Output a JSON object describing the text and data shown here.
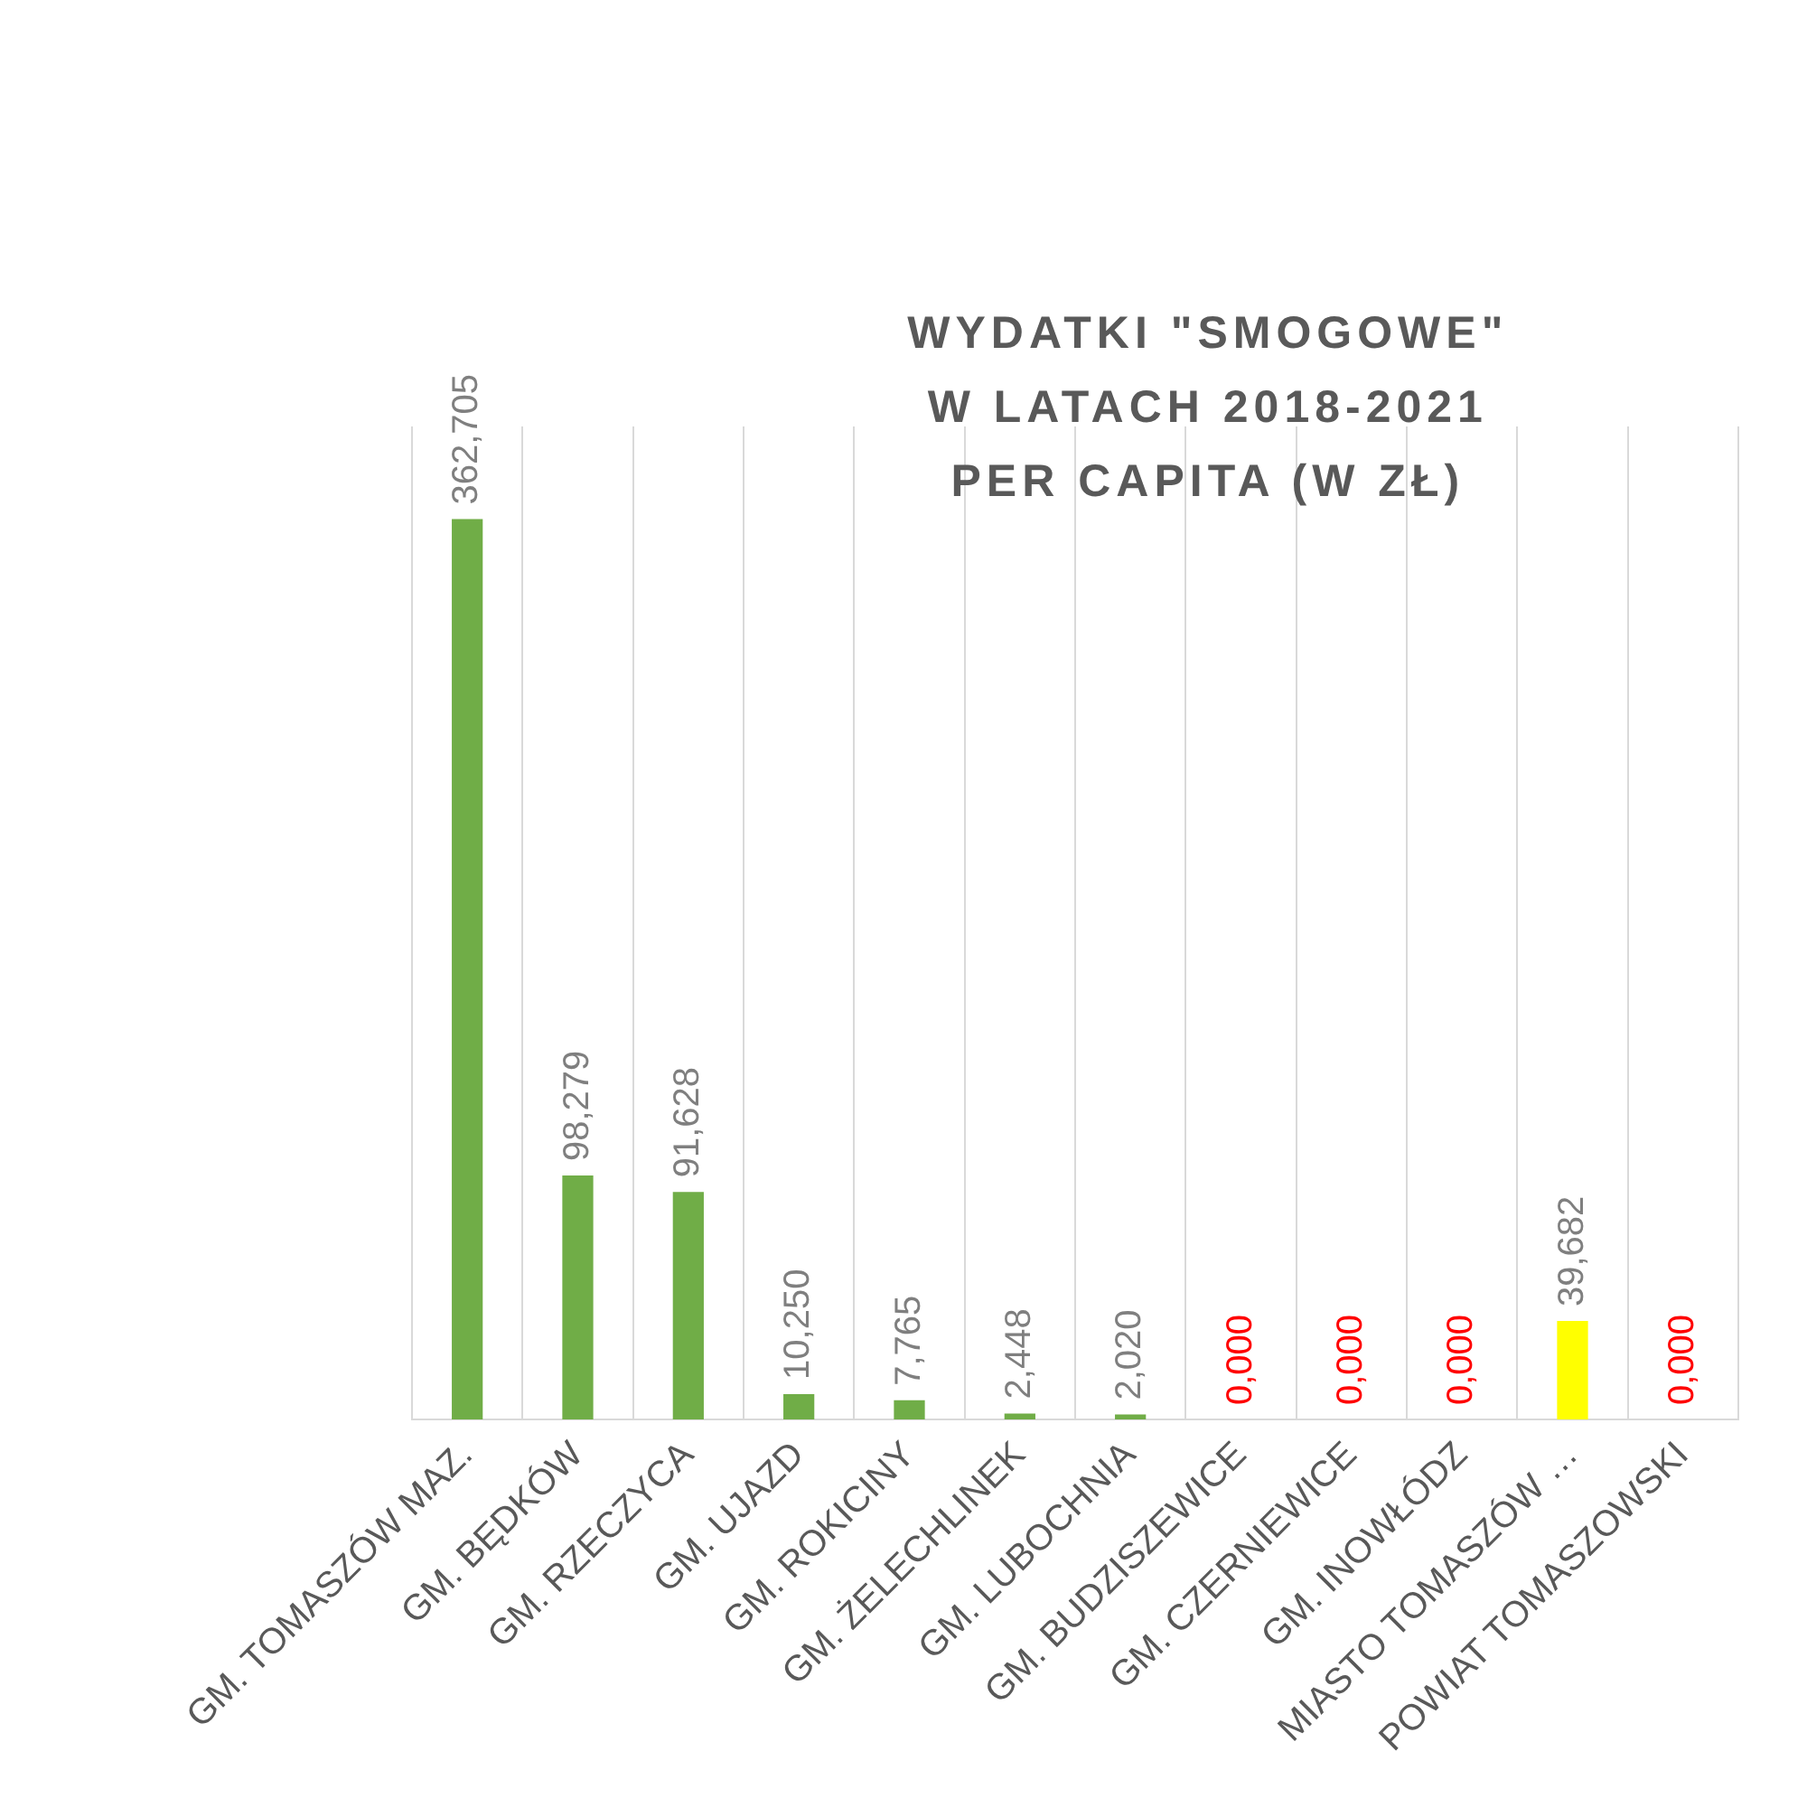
{
  "chart_data": {
    "type": "bar",
    "title": "WYDATKI \"SMOGOWE\"\nW LATACH 2018-2021\nPER CAPITA (W ZŁ)",
    "categories": [
      "GM. TOMASZÓW MAZ.",
      "GM. BĘDKÓW",
      "GM. RZECZYCA",
      "GM. UJAZD",
      "GM. ROKICINY",
      "GM. ŻELECHLINEK",
      "GM. LUBOCHNIA",
      "GM. BUDZISZEWICE",
      "GM. CZERNIEWICE",
      "GM. INOWŁÓDZ",
      "MIASTO TOMASZÓW …",
      "POWIAT TOMASZOWSKI"
    ],
    "values": [
      362.705,
      98.279,
      91.628,
      10.25,
      7.765,
      2.448,
      2.02,
      0,
      0,
      0,
      39.682,
      0
    ],
    "value_labels": [
      "362,705",
      "98,279",
      "91,628",
      "10,250",
      "7,765",
      "2,448",
      "2,020",
      "0,000",
      "0,000",
      "0,000",
      "39,682",
      "0,000"
    ],
    "colors": [
      "#70ad47",
      "#70ad47",
      "#70ad47",
      "#70ad47",
      "#70ad47",
      "#70ad47",
      "#70ad47",
      "#70ad47",
      "#70ad47",
      "#70ad47",
      "#ffff00",
      "#70ad47"
    ],
    "grid": "x",
    "legend": false
  }
}
